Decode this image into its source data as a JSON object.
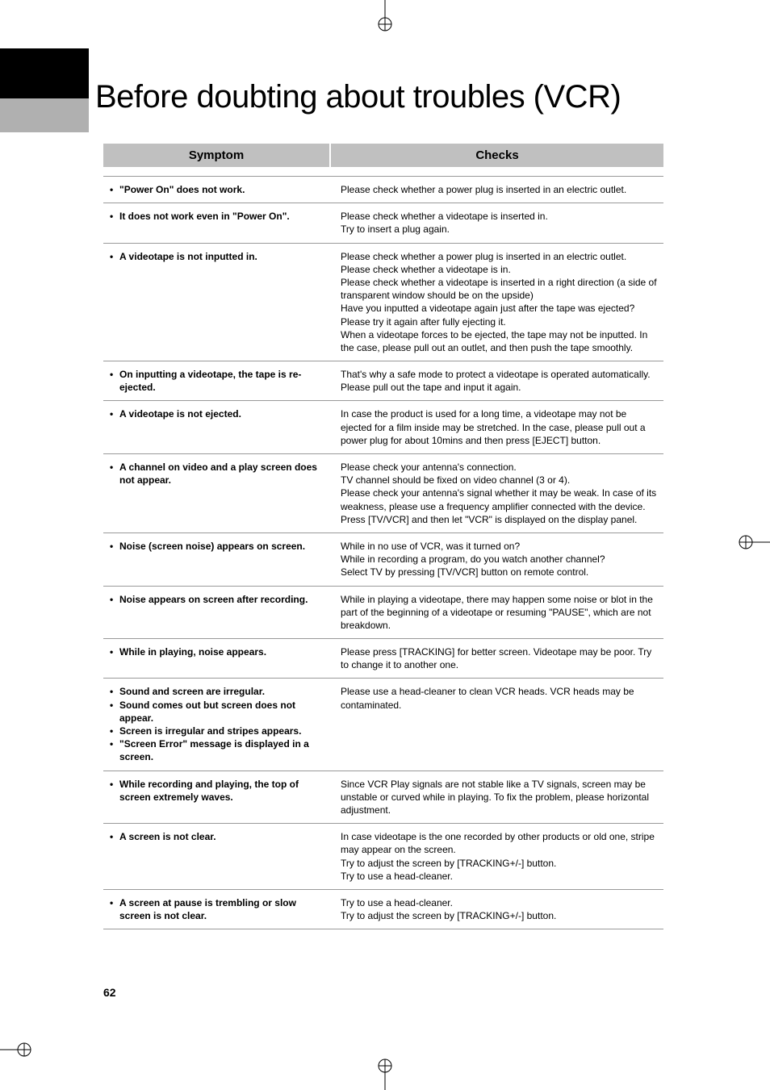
{
  "title": "Before doubting about troubles (VCR)",
  "headers": {
    "symptom": "Symptom",
    "checks": "Checks"
  },
  "page_number": "62",
  "rows": [
    {
      "symptoms": [
        "\"Power On\" does not work."
      ],
      "checks": [
        "Please check whether a power plug is inserted in an electric outlet."
      ]
    },
    {
      "symptoms": [
        "It does not work even in \"Power On\"."
      ],
      "checks": [
        "Please check whether a videotape is inserted in.",
        "Try to insert a plug again."
      ]
    },
    {
      "symptoms": [
        "A videotape is not inputted in."
      ],
      "checks": [
        "Please check whether a power plug is inserted in an electric outlet.",
        "Please check whether a videotape is in.",
        "Please check whether a videotape is inserted in a right direction (a side of transparent window should be on the upside)",
        "Have you inputted a videotape again just after the tape was ejected? Please try it again after fully ejecting it.",
        "When a videotape forces to be ejected, the tape may not be inputted. In the case, please pull out an outlet, and then push the tape smoothly."
      ]
    },
    {
      "symptoms": [
        "On inputting a videotape, the tape is re-ejected."
      ],
      "checks": [
        "That's why a safe mode to protect a videotape is operated automatically. Please pull out the tape and input it again."
      ]
    },
    {
      "symptoms": [
        "A videotape is not ejected."
      ],
      "checks": [
        "In case the product is used for a long time, a videotape may not be ejected for a film inside may be stretched. In the case, please pull out a power plug for about 10mins and then press [EJECT] button."
      ]
    },
    {
      "symptoms": [
        "A channel on video and a play screen does not appear."
      ],
      "checks": [
        "Please check your antenna's connection.",
        "TV channel should be fixed on video channel (3 or 4).",
        "Please check your antenna's signal whether it may be weak. In case of its weakness, please use a frequency amplifier connected with the device.",
        "Press [TV/VCR] and then let \"VCR\" is displayed on the display panel."
      ]
    },
    {
      "symptoms": [
        "Noise (screen noise) appears on screen."
      ],
      "checks": [
        "While in no use of VCR, was it turned on?",
        "While in recording a program, do you watch another channel?",
        "Select TV by pressing [TV/VCR] button on remote control."
      ]
    },
    {
      "symptoms": [
        "Noise appears on screen after recording."
      ],
      "checks": [
        "While in playing a videotape, there may happen some noise or blot in the part of the beginning of a videotape or resuming \"PAUSE\", which are not breakdown."
      ]
    },
    {
      "symptoms": [
        "While in playing, noise appears."
      ],
      "checks": [
        "Please press [TRACKING] for better screen. Videotape may be poor. Try to change it to another one."
      ]
    },
    {
      "symptoms": [
        "Sound and screen are irregular.",
        "Sound comes out but screen does not appear.",
        "Screen is irregular and stripes appears.",
        "\"Screen Error\" message is displayed in a screen."
      ],
      "checks": [
        "Please use a head-cleaner to clean VCR heads. VCR heads may be contaminated."
      ]
    },
    {
      "symptoms": [
        "While recording and playing, the top of screen extremely waves."
      ],
      "checks": [
        "Since VCR Play signals are not stable like a TV signals, screen may be unstable or curved while in playing. To fix the problem, please horizontal adjustment."
      ]
    },
    {
      "symptoms": [
        "A screen is not clear."
      ],
      "checks": [
        "In case videotape is the one recorded by other products or old one, stripe may appear on the screen.",
        "Try to adjust the screen by [TRACKING+/-] button.",
        "Try to use a head-cleaner."
      ]
    },
    {
      "symptoms": [
        "A screen at pause is trembling or slow screen is not clear."
      ],
      "checks": [
        "Try to use a head-cleaner.",
        "Try to adjust the screen by [TRACKING+/-] button."
      ]
    }
  ]
}
